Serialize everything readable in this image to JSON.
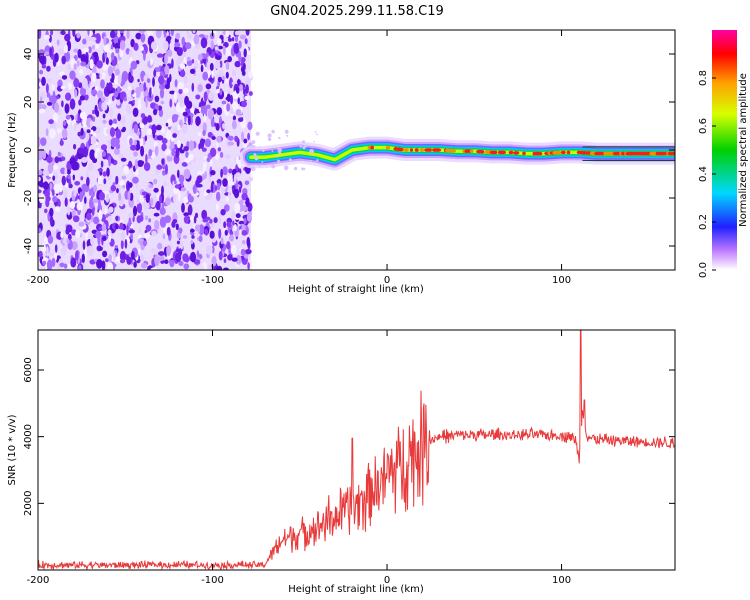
{
  "title": "GN04.2025.299.11.58.C19",
  "chart_data": [
    {
      "type": "heatmap",
      "xlabel": "Height of straight line (km)",
      "ylabel": "Frequency (Hz)",
      "xlim": [
        -200,
        165
      ],
      "ylim": [
        -50,
        50
      ],
      "x_ticks": [
        -200,
        -100,
        0,
        100
      ],
      "y_ticks": [
        -40,
        -20,
        0,
        20,
        40
      ],
      "noise_region": {
        "x_range": [
          -200,
          -78
        ],
        "y_range": [
          -50,
          50
        ]
      },
      "ridge": {
        "x": [
          -78,
          -70,
          -60,
          -50,
          -40,
          -30,
          -25,
          -20,
          -10,
          0,
          10,
          20,
          30,
          40,
          50,
          60,
          70,
          80,
          90,
          100,
          110,
          120,
          140,
          165
        ],
        "y": [
          -3,
          -3,
          -2,
          -1,
          -2,
          -4,
          -2,
          0,
          1,
          1,
          0,
          0,
          0,
          -0.5,
          -0.5,
          -1,
          -1,
          -1.5,
          -1.5,
          -1,
          -1,
          -1.5,
          -1.5,
          -1.5
        ]
      },
      "colorbar": {
        "label": "Normalized spectral amplitude",
        "range": [
          0,
          1
        ],
        "ticks": [
          0.0,
          0.2,
          0.4,
          0.6,
          0.8
        ],
        "tick_labels": [
          "0.0",
          "0.2",
          "0.4",
          "0.6",
          "0.8"
        ]
      },
      "grid": false
    },
    {
      "type": "line",
      "xlabel": "Height of straight line (km)",
      "ylabel": "SNR (10 * v/v)",
      "xlim": [
        -200,
        165
      ],
      "ylim": [
        0,
        7200
      ],
      "x_ticks": [
        -200,
        -100,
        0,
        100
      ],
      "y_ticks": [
        2000,
        4000,
        6000
      ],
      "color": "#e83a3a",
      "series": [
        {
          "x": [
            -200,
            -180,
            -160,
            -140,
            -120,
            -100,
            -80,
            -70,
            -65,
            -60,
            -55,
            -50,
            -45,
            -40,
            -35,
            -30,
            -25,
            -20,
            -15,
            -10,
            -5,
            0,
            5,
            10,
            15,
            20,
            25,
            30,
            40,
            50,
            60,
            70,
            80,
            90,
            100,
            105,
            108,
            110,
            112,
            115,
            120,
            130,
            140,
            150,
            165
          ],
          "values": [
            150,
            150,
            150,
            150,
            150,
            150,
            150,
            150,
            600,
            900,
            1000,
            1100,
            1200,
            1300,
            1500,
            1600,
            1700,
            1900,
            2100,
            2400,
            2600,
            2800,
            3100,
            3300,
            3500,
            3700,
            3900,
            4000,
            4050,
            4050,
            4050,
            4050,
            4050,
            4050,
            4050,
            4000,
            3900,
            3300,
            4800,
            4000,
            3900,
            3900,
            3850,
            3850,
            3800
          ]
        }
      ],
      "spikes": [
        {
          "x": -20,
          "value": 3950
        },
        {
          "x": 111,
          "value": 7200
        },
        {
          "x": 113,
          "value": 5100
        }
      ],
      "grid": false
    }
  ]
}
